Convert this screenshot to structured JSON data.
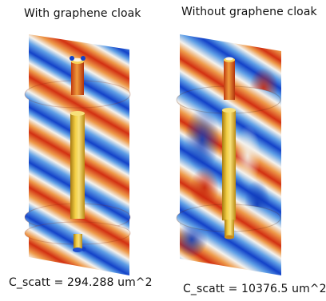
{
  "panels": [
    {
      "title": "With graphene cloak",
      "result": "C_scatt = 294.288 um^2"
    },
    {
      "title": "Without graphene cloak",
      "result": "C_scatt = 10376.5 um^2"
    }
  ],
  "colors": {
    "wave_red": "#d23012",
    "wave_orange": "#ee9a4a",
    "wave_white": "#f4f1ec",
    "wave_lightblue": "#5f9fe6",
    "wave_blue": "#1342c8",
    "rod_gold": "#e6b82a"
  }
}
